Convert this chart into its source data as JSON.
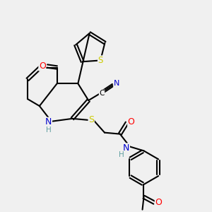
{
  "background_color": "#f0f0f0",
  "atom_colors": {
    "C": "#000000",
    "N": "#0000cd",
    "O": "#ff0000",
    "S": "#cccc00",
    "H": "#5f9ea0"
  },
  "bond_color": "#000000",
  "figsize": [
    3.0,
    3.0
  ],
  "dpi": 100
}
